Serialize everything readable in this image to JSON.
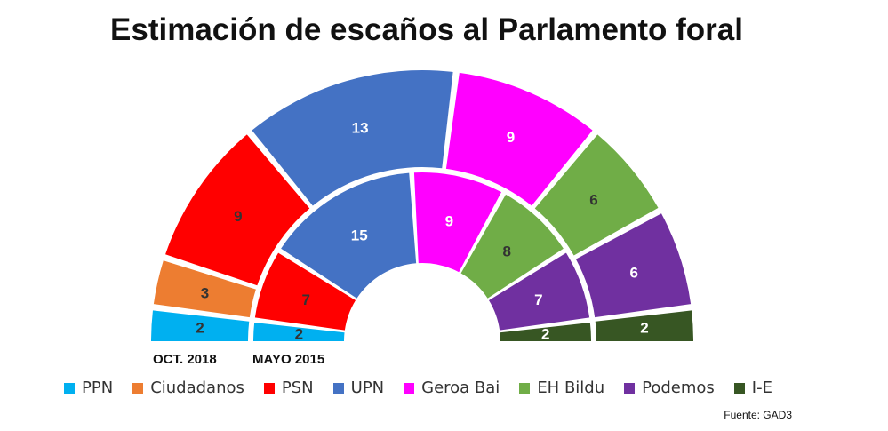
{
  "chart_data": {
    "type": "semicircle-parliament",
    "title": "Estimación de escaños al Parlamento foral",
    "parties": [
      {
        "name": "PPN",
        "color": "#00B0F0"
      },
      {
        "name": "Ciudadanos",
        "color": "#ED7D31"
      },
      {
        "name": "PSN",
        "color": "#FF0000"
      },
      {
        "name": "UPN",
        "color": "#4472C4"
      },
      {
        "name": "Geroa Bai",
        "color": "#FF00FF"
      },
      {
        "name": "EH Bildu",
        "color": "#70AD47"
      },
      {
        "name": "Podemos",
        "color": "#7030A0"
      },
      {
        "name": "I-E",
        "color": "#375623"
      }
    ],
    "series": [
      {
        "name": "OCT. 2018",
        "values": [
          2,
          3,
          9,
          13,
          9,
          6,
          6,
          2
        ]
      },
      {
        "name": "MAYO 2015",
        "values": [
          2,
          0,
          7,
          15,
          9,
          8,
          7,
          2
        ]
      }
    ],
    "source": "Fuente: GAD3"
  }
}
